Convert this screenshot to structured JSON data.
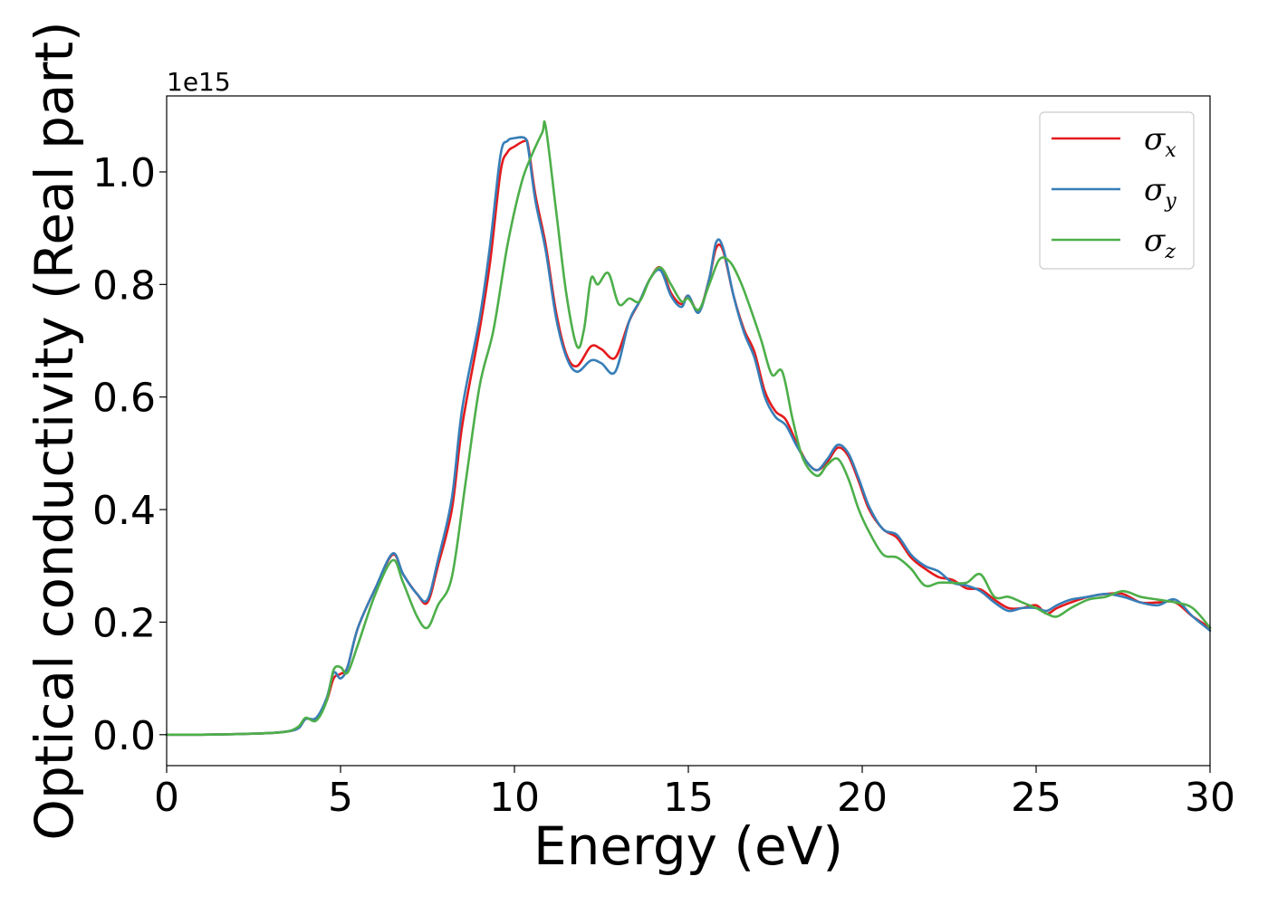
{
  "chart_data": {
    "type": "line",
    "title": "",
    "xlabel": "Energy (eV)",
    "ylabel": "Optical conductivity (Real part)",
    "y_offset_label": "1e15",
    "xlim": [
      0,
      30
    ],
    "ylim": [
      -0.055,
      1.135
    ],
    "y_scale": 1000000000000000.0,
    "x_ticks": [
      0,
      5,
      10,
      15,
      20,
      25,
      30
    ],
    "x_tick_labels": [
      "0",
      "5",
      "10",
      "15",
      "20",
      "25",
      "30"
    ],
    "y_ticks": [
      0.0,
      0.2,
      0.4,
      0.6,
      0.8,
      1.0
    ],
    "y_tick_labels": [
      "0.0",
      "0.2",
      "0.4",
      "0.6",
      "0.8",
      "1.0"
    ],
    "grid": false,
    "legend": {
      "position": "top-right"
    },
    "series": [
      {
        "name": "σx",
        "symbol": "σ",
        "subscript": "x",
        "color": "#e41a1c",
        "x": [
          0,
          1,
          2,
          3,
          3.5,
          3.8,
          4.0,
          4.3,
          4.6,
          4.8,
          5.0,
          5.2,
          5.5,
          6.0,
          6.5,
          6.8,
          7.2,
          7.5,
          7.8,
          8.2,
          8.5,
          9.0,
          9.3,
          9.6,
          9.8,
          10.0,
          10.3,
          10.4,
          10.6,
          10.9,
          11.2,
          11.5,
          11.8,
          12.2,
          12.5,
          12.9,
          13.3,
          13.6,
          13.9,
          14.2,
          14.5,
          14.8,
          15.0,
          15.3,
          15.6,
          15.8,
          16.0,
          16.3,
          16.6,
          16.9,
          17.2,
          17.5,
          17.8,
          18.1,
          18.4,
          18.7,
          19.0,
          19.3,
          19.6,
          19.9,
          20.2,
          20.6,
          21.0,
          21.4,
          21.8,
          22.2,
          22.6,
          23.0,
          23.4,
          23.8,
          24.2,
          24.6,
          25.0,
          25.3,
          25.6,
          26.0,
          26.5,
          27.0,
          27.5,
          28.0,
          28.5,
          29.0,
          29.5,
          30.0
        ],
        "y": [
          0.0,
          0.0,
          0.001,
          0.003,
          0.006,
          0.012,
          0.028,
          0.028,
          0.06,
          0.1,
          0.108,
          0.12,
          0.19,
          0.26,
          0.32,
          0.285,
          0.25,
          0.235,
          0.3,
          0.4,
          0.55,
          0.72,
          0.84,
          1.0,
          1.035,
          1.045,
          1.055,
          1.045,
          0.96,
          0.87,
          0.75,
          0.675,
          0.655,
          0.69,
          0.685,
          0.67,
          0.735,
          0.77,
          0.81,
          0.83,
          0.785,
          0.765,
          0.78,
          0.752,
          0.81,
          0.865,
          0.86,
          0.78,
          0.72,
          0.68,
          0.61,
          0.575,
          0.56,
          0.52,
          0.485,
          0.47,
          0.485,
          0.51,
          0.495,
          0.45,
          0.4,
          0.365,
          0.35,
          0.315,
          0.295,
          0.28,
          0.275,
          0.26,
          0.258,
          0.24,
          0.225,
          0.225,
          0.23,
          0.215,
          0.225,
          0.235,
          0.245,
          0.25,
          0.25,
          0.235,
          0.235,
          0.235,
          0.21,
          0.19
        ]
      },
      {
        "name": "σy",
        "symbol": "σ",
        "subscript": "y",
        "color": "#377eb8",
        "x": [
          0,
          1,
          2,
          3,
          3.5,
          3.8,
          4.0,
          4.3,
          4.6,
          4.8,
          5.0,
          5.2,
          5.5,
          6.0,
          6.5,
          6.8,
          7.2,
          7.5,
          7.8,
          8.2,
          8.5,
          9.0,
          9.3,
          9.6,
          9.8,
          10.0,
          10.3,
          10.4,
          10.6,
          10.9,
          11.2,
          11.5,
          11.8,
          12.2,
          12.5,
          12.9,
          13.3,
          13.6,
          13.9,
          14.2,
          14.5,
          14.8,
          15.0,
          15.3,
          15.6,
          15.8,
          16.0,
          16.3,
          16.6,
          16.9,
          17.2,
          17.5,
          17.8,
          18.1,
          18.4,
          18.7,
          19.0,
          19.3,
          19.6,
          19.9,
          20.2,
          20.6,
          21.0,
          21.4,
          21.8,
          22.2,
          22.6,
          23.0,
          23.4,
          23.8,
          24.2,
          24.6,
          25.0,
          25.3,
          25.6,
          26.0,
          26.5,
          27.0,
          27.5,
          28.0,
          28.5,
          29.0,
          29.5,
          30.0
        ],
        "y": [
          0.0,
          0.0,
          0.001,
          0.003,
          0.006,
          0.012,
          0.028,
          0.03,
          0.065,
          0.11,
          0.1,
          0.12,
          0.19,
          0.26,
          0.322,
          0.285,
          0.25,
          0.24,
          0.31,
          0.42,
          0.58,
          0.74,
          0.87,
          1.03,
          1.055,
          1.06,
          1.06,
          1.04,
          0.95,
          0.86,
          0.74,
          0.67,
          0.645,
          0.665,
          0.66,
          0.645,
          0.735,
          0.77,
          0.81,
          0.825,
          0.78,
          0.76,
          0.78,
          0.75,
          0.81,
          0.875,
          0.865,
          0.78,
          0.715,
          0.67,
          0.6,
          0.565,
          0.55,
          0.515,
          0.485,
          0.47,
          0.49,
          0.515,
          0.5,
          0.455,
          0.405,
          0.365,
          0.355,
          0.32,
          0.3,
          0.29,
          0.27,
          0.265,
          0.255,
          0.235,
          0.22,
          0.225,
          0.225,
          0.22,
          0.23,
          0.24,
          0.245,
          0.25,
          0.245,
          0.235,
          0.23,
          0.24,
          0.21,
          0.185
        ]
      },
      {
        "name": "σz",
        "symbol": "σ",
        "subscript": "z",
        "color": "#4daf4a",
        "x": [
          0,
          1,
          2,
          3,
          3.5,
          3.8,
          4.0,
          4.3,
          4.6,
          4.8,
          5.0,
          5.2,
          5.5,
          6.0,
          6.5,
          6.8,
          7.2,
          7.5,
          7.8,
          8.2,
          8.6,
          9.0,
          9.4,
          9.8,
          10.2,
          10.5,
          10.8,
          10.9,
          11.2,
          11.5,
          11.8,
          12.0,
          12.2,
          12.4,
          12.7,
          13.0,
          13.3,
          13.6,
          13.9,
          14.2,
          14.5,
          14.8,
          15.0,
          15.3,
          15.6,
          15.9,
          16.2,
          16.5,
          16.8,
          17.1,
          17.4,
          17.7,
          18.0,
          18.3,
          18.7,
          19.0,
          19.3,
          19.6,
          19.9,
          20.2,
          20.6,
          21.0,
          21.4,
          21.8,
          22.2,
          22.6,
          23.0,
          23.4,
          23.8,
          24.2,
          24.6,
          25.0,
          25.3,
          25.6,
          26.0,
          26.5,
          27.0,
          27.5,
          28.0,
          28.5,
          29.0,
          29.5,
          30.0
        ],
        "y": [
          0.0,
          0.0,
          0.001,
          0.003,
          0.006,
          0.015,
          0.03,
          0.025,
          0.06,
          0.115,
          0.12,
          0.11,
          0.16,
          0.25,
          0.31,
          0.27,
          0.21,
          0.19,
          0.23,
          0.28,
          0.45,
          0.62,
          0.72,
          0.87,
          0.98,
          1.03,
          1.07,
          1.08,
          0.93,
          0.78,
          0.69,
          0.72,
          0.81,
          0.8,
          0.82,
          0.765,
          0.775,
          0.77,
          0.81,
          0.83,
          0.8,
          0.77,
          0.775,
          0.755,
          0.8,
          0.845,
          0.84,
          0.805,
          0.755,
          0.7,
          0.64,
          0.645,
          0.56,
          0.49,
          0.46,
          0.48,
          0.49,
          0.455,
          0.4,
          0.36,
          0.32,
          0.315,
          0.295,
          0.265,
          0.27,
          0.27,
          0.27,
          0.285,
          0.245,
          0.245,
          0.235,
          0.225,
          0.215,
          0.21,
          0.225,
          0.24,
          0.245,
          0.255,
          0.245,
          0.24,
          0.235,
          0.225,
          0.19
        ]
      }
    ]
  }
}
